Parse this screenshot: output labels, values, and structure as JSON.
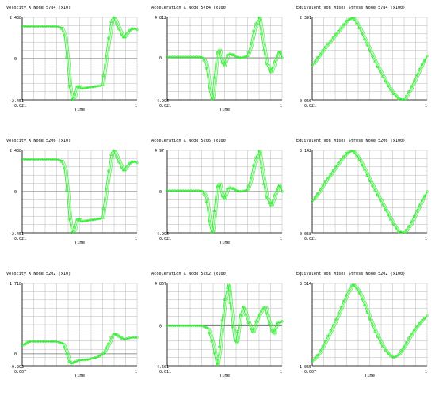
{
  "colors": {
    "trace": "#33ee33",
    "grid": "#b8b8b8",
    "axis": "#000000",
    "zero_line": "#707070"
  },
  "chart_data": [
    {
      "type": "line",
      "title": "Velocity X Node 5784 (x10)",
      "xlabel": "Time",
      "x_min_label": "0.021",
      "x_max_label": "1",
      "y_max_label": "2.438",
      "y_zero_label": "0",
      "y_min_label": "-2.451",
      "xlim": [
        0.021,
        1
      ],
      "ylim": [
        -2.451,
        2.438
      ],
      "x": [
        0.02,
        0.1,
        0.2,
        0.3,
        0.35,
        0.38,
        0.4,
        0.42,
        0.44,
        0.46,
        0.48,
        0.5,
        0.52,
        0.55,
        0.6,
        0.65,
        0.7,
        0.72,
        0.75,
        0.78,
        0.8,
        0.84,
        0.88,
        0.92,
        0.96,
        1.0
      ],
      "y": [
        1.9,
        1.9,
        1.9,
        1.9,
        1.85,
        1.3,
        0,
        -1.6,
        -2.45,
        -2.3,
        -1.7,
        -1.6,
        -1.8,
        -1.75,
        -1.7,
        -1.65,
        -1.6,
        -0.5,
        1.0,
        2.3,
        2.43,
        1.8,
        1.2,
        1.6,
        1.8,
        1.7
      ]
    },
    {
      "type": "line",
      "title": "Acceleration X Node 5784 (x100)",
      "xlabel": "Time",
      "x_min_label": "0.021",
      "x_max_label": "1",
      "y_max_label": "4.812",
      "y_zero_label": "0",
      "y_min_label": "-4.996",
      "xlim": [
        0.021,
        1
      ],
      "ylim": [
        -4.996,
        4.812
      ],
      "x": [
        0.02,
        0.1,
        0.2,
        0.3,
        0.32,
        0.35,
        0.38,
        0.4,
        0.42,
        0.44,
        0.46,
        0.48,
        0.5,
        0.53,
        0.56,
        0.6,
        0.65,
        0.7,
        0.73,
        0.76,
        0.8,
        0.82,
        0.86,
        0.9,
        0.94,
        0.97,
        1.0
      ],
      "y": [
        0.1,
        0.1,
        0.1,
        0.1,
        0.0,
        -0.8,
        -4.0,
        -4.99,
        -2.5,
        0.5,
        1.0,
        -0.3,
        -1.0,
        0.3,
        0.5,
        0.1,
        0.0,
        0.2,
        1.5,
        3.5,
        4.8,
        3.0,
        -0.5,
        -1.8,
        -0.2,
        0.8,
        0.0
      ]
    },
    {
      "type": "line",
      "title": "Equivalent Von Mises Stress Node 5784 (x100)",
      "xlabel": "",
      "x_min_label": "0.021",
      "x_max_label": "1",
      "y_max_label": "2.391",
      "y_min_label": "0.066",
      "xlim": [
        0.021,
        1
      ],
      "ylim": [
        0.066,
        2.391
      ],
      "x": [
        0.0,
        0.05,
        0.1,
        0.15,
        0.2,
        0.25,
        0.3,
        0.35,
        0.4,
        0.45,
        0.5,
        0.55,
        0.6,
        0.65,
        0.7,
        0.75,
        0.8,
        0.85,
        0.9,
        0.95,
        1.0
      ],
      "y": [
        1.05,
        1.28,
        1.5,
        1.7,
        1.9,
        2.1,
        2.3,
        2.39,
        2.15,
        1.8,
        1.45,
        1.1,
        0.8,
        0.5,
        0.25,
        0.09,
        0.07,
        0.35,
        0.7,
        1.05,
        1.3
      ]
    },
    {
      "type": "line",
      "title": "Velocity X Node 5206 (x10)",
      "xlabel": "Time",
      "x_min_label": "0.021",
      "x_max_label": "1",
      "y_max_label": "2.438",
      "y_zero_label": "0",
      "y_min_label": "-2.451",
      "xlim": [
        0.021,
        1
      ],
      "ylim": [
        -2.451,
        2.438
      ],
      "x": [
        0.02,
        0.1,
        0.2,
        0.3,
        0.35,
        0.38,
        0.4,
        0.42,
        0.44,
        0.46,
        0.48,
        0.5,
        0.52,
        0.55,
        0.6,
        0.65,
        0.7,
        0.72,
        0.75,
        0.78,
        0.8,
        0.84,
        0.88,
        0.92,
        0.96,
        1.0
      ],
      "y": [
        1.9,
        1.9,
        1.9,
        1.9,
        1.85,
        1.3,
        0,
        -1.6,
        -2.45,
        -2.3,
        -1.7,
        -1.6,
        -1.8,
        -1.75,
        -1.7,
        -1.65,
        -1.6,
        -0.5,
        1.0,
        2.3,
        2.43,
        1.8,
        1.2,
        1.6,
        1.8,
        1.7
      ]
    },
    {
      "type": "line",
      "title": "Acceleration X Node 5206 (x100)",
      "xlabel": "Time",
      "x_min_label": "0.021",
      "x_max_label": "1",
      "y_max_label": "4.97",
      "y_zero_label": "0",
      "y_min_label": "-4.995",
      "xlim": [
        0.021,
        1
      ],
      "ylim": [
        -4.995,
        4.97
      ],
      "x": [
        0.02,
        0.1,
        0.2,
        0.3,
        0.32,
        0.35,
        0.38,
        0.4,
        0.42,
        0.44,
        0.46,
        0.48,
        0.5,
        0.53,
        0.56,
        0.6,
        0.65,
        0.7,
        0.73,
        0.76,
        0.8,
        0.82,
        0.86,
        0.9,
        0.94,
        0.97,
        1.0
      ],
      "y": [
        0.1,
        0.1,
        0.1,
        0.1,
        0.0,
        -0.8,
        -4.0,
        -4.99,
        -2.5,
        0.5,
        1.0,
        -0.3,
        -1.0,
        0.3,
        0.5,
        0.1,
        0.0,
        0.2,
        1.5,
        3.5,
        4.9,
        3.0,
        -0.5,
        -1.8,
        -0.2,
        0.8,
        0.0
      ]
    },
    {
      "type": "line",
      "title": "Equivalent Von Mises Stress Node 5206 (x100)",
      "xlabel": "",
      "x_min_label": "0.021",
      "x_max_label": "1",
      "y_max_label": "3.142",
      "y_min_label": "0.058",
      "xlim": [
        0.021,
        1
      ],
      "ylim": [
        0.058,
        3.142
      ],
      "x": [
        0.0,
        0.05,
        0.1,
        0.15,
        0.2,
        0.25,
        0.3,
        0.35,
        0.4,
        0.45,
        0.5,
        0.55,
        0.6,
        0.65,
        0.7,
        0.75,
        0.8,
        0.85,
        0.9,
        0.95,
        1.0
      ],
      "y": [
        1.25,
        1.55,
        1.9,
        2.2,
        2.5,
        2.8,
        3.05,
        3.14,
        2.85,
        2.45,
        2.0,
        1.6,
        1.2,
        0.8,
        0.4,
        0.1,
        0.06,
        0.35,
        0.8,
        1.25,
        1.6
      ]
    },
    {
      "type": "line",
      "title": "Velocity X Node 5202 (x10)",
      "xlabel": "Time",
      "x_min_label": "0.007",
      "x_max_label": "1",
      "y_max_label": "1.718",
      "y_zero_label": "0",
      "y_min_label": "-0.292",
      "xlim": [
        0.007,
        1
      ],
      "ylim": [
        -0.292,
        1.718
      ],
      "x": [
        0.0,
        0.05,
        0.1,
        0.2,
        0.3,
        0.35,
        0.38,
        0.4,
        0.42,
        0.45,
        0.5,
        0.55,
        0.6,
        0.65,
        0.7,
        0.75,
        0.78,
        0.8,
        0.84,
        0.88,
        0.92,
        0.96,
        1.0
      ],
      "y": [
        0.2,
        0.3,
        0.3,
        0.3,
        0.3,
        0.25,
        0.05,
        -0.15,
        -0.25,
        -0.2,
        -0.15,
        -0.15,
        -0.12,
        -0.08,
        0.0,
        0.25,
        0.45,
        0.5,
        0.42,
        0.35,
        0.38,
        0.4,
        0.4
      ]
    },
    {
      "type": "line",
      "title": "Acceleration X Node 5202 (x100)",
      "xlabel": "Time",
      "x_min_label": "0.011",
      "x_max_label": "1",
      "y_max_label": "4.867",
      "y_zero_label": "0",
      "y_min_label": "-4.601",
      "xlim": [
        0.011,
        1
      ],
      "ylim": [
        -4.601,
        4.867
      ],
      "x": [
        0.0,
        0.05,
        0.1,
        0.2,
        0.3,
        0.35,
        0.38,
        0.4,
        0.43,
        0.45,
        0.48,
        0.5,
        0.53,
        0.55,
        0.58,
        0.6,
        0.63,
        0.66,
        0.7,
        0.74,
        0.78,
        0.82,
        0.85,
        0.88,
        0.92,
        0.95,
        1.0
      ],
      "y": [
        0.0,
        0.0,
        0.0,
        0.0,
        0.0,
        -0.3,
        -1.5,
        -2.5,
        -4.6,
        -3.0,
        1.0,
        3.0,
        4.8,
        2.0,
        -1.5,
        -2.0,
        1.0,
        2.2,
        0.5,
        -0.8,
        0.8,
        1.8,
        2.2,
        0.5,
        -1.0,
        0.3,
        0.5
      ]
    },
    {
      "type": "line",
      "title": "Equivalent Von Mises Stress Node 5202 (x100)",
      "xlabel": "Time",
      "x_min_label": "0.007",
      "x_max_label": "1",
      "y_max_label": "3.514",
      "y_min_label": "1.065",
      "xlim": [
        0.007,
        1
      ],
      "ylim": [
        1.065,
        3.514
      ],
      "x": [
        0.0,
        0.05,
        0.1,
        0.15,
        0.2,
        0.25,
        0.3,
        0.35,
        0.4,
        0.45,
        0.5,
        0.55,
        0.6,
        0.65,
        0.7,
        0.75,
        0.8,
        0.85,
        0.9,
        0.95,
        1.0
      ],
      "y": [
        1.2,
        1.4,
        1.7,
        2.05,
        2.4,
        2.8,
        3.2,
        3.5,
        3.3,
        2.9,
        2.45,
        2.05,
        1.7,
        1.45,
        1.3,
        1.4,
        1.65,
        1.95,
        2.2,
        2.4,
        2.55
      ]
    }
  ]
}
